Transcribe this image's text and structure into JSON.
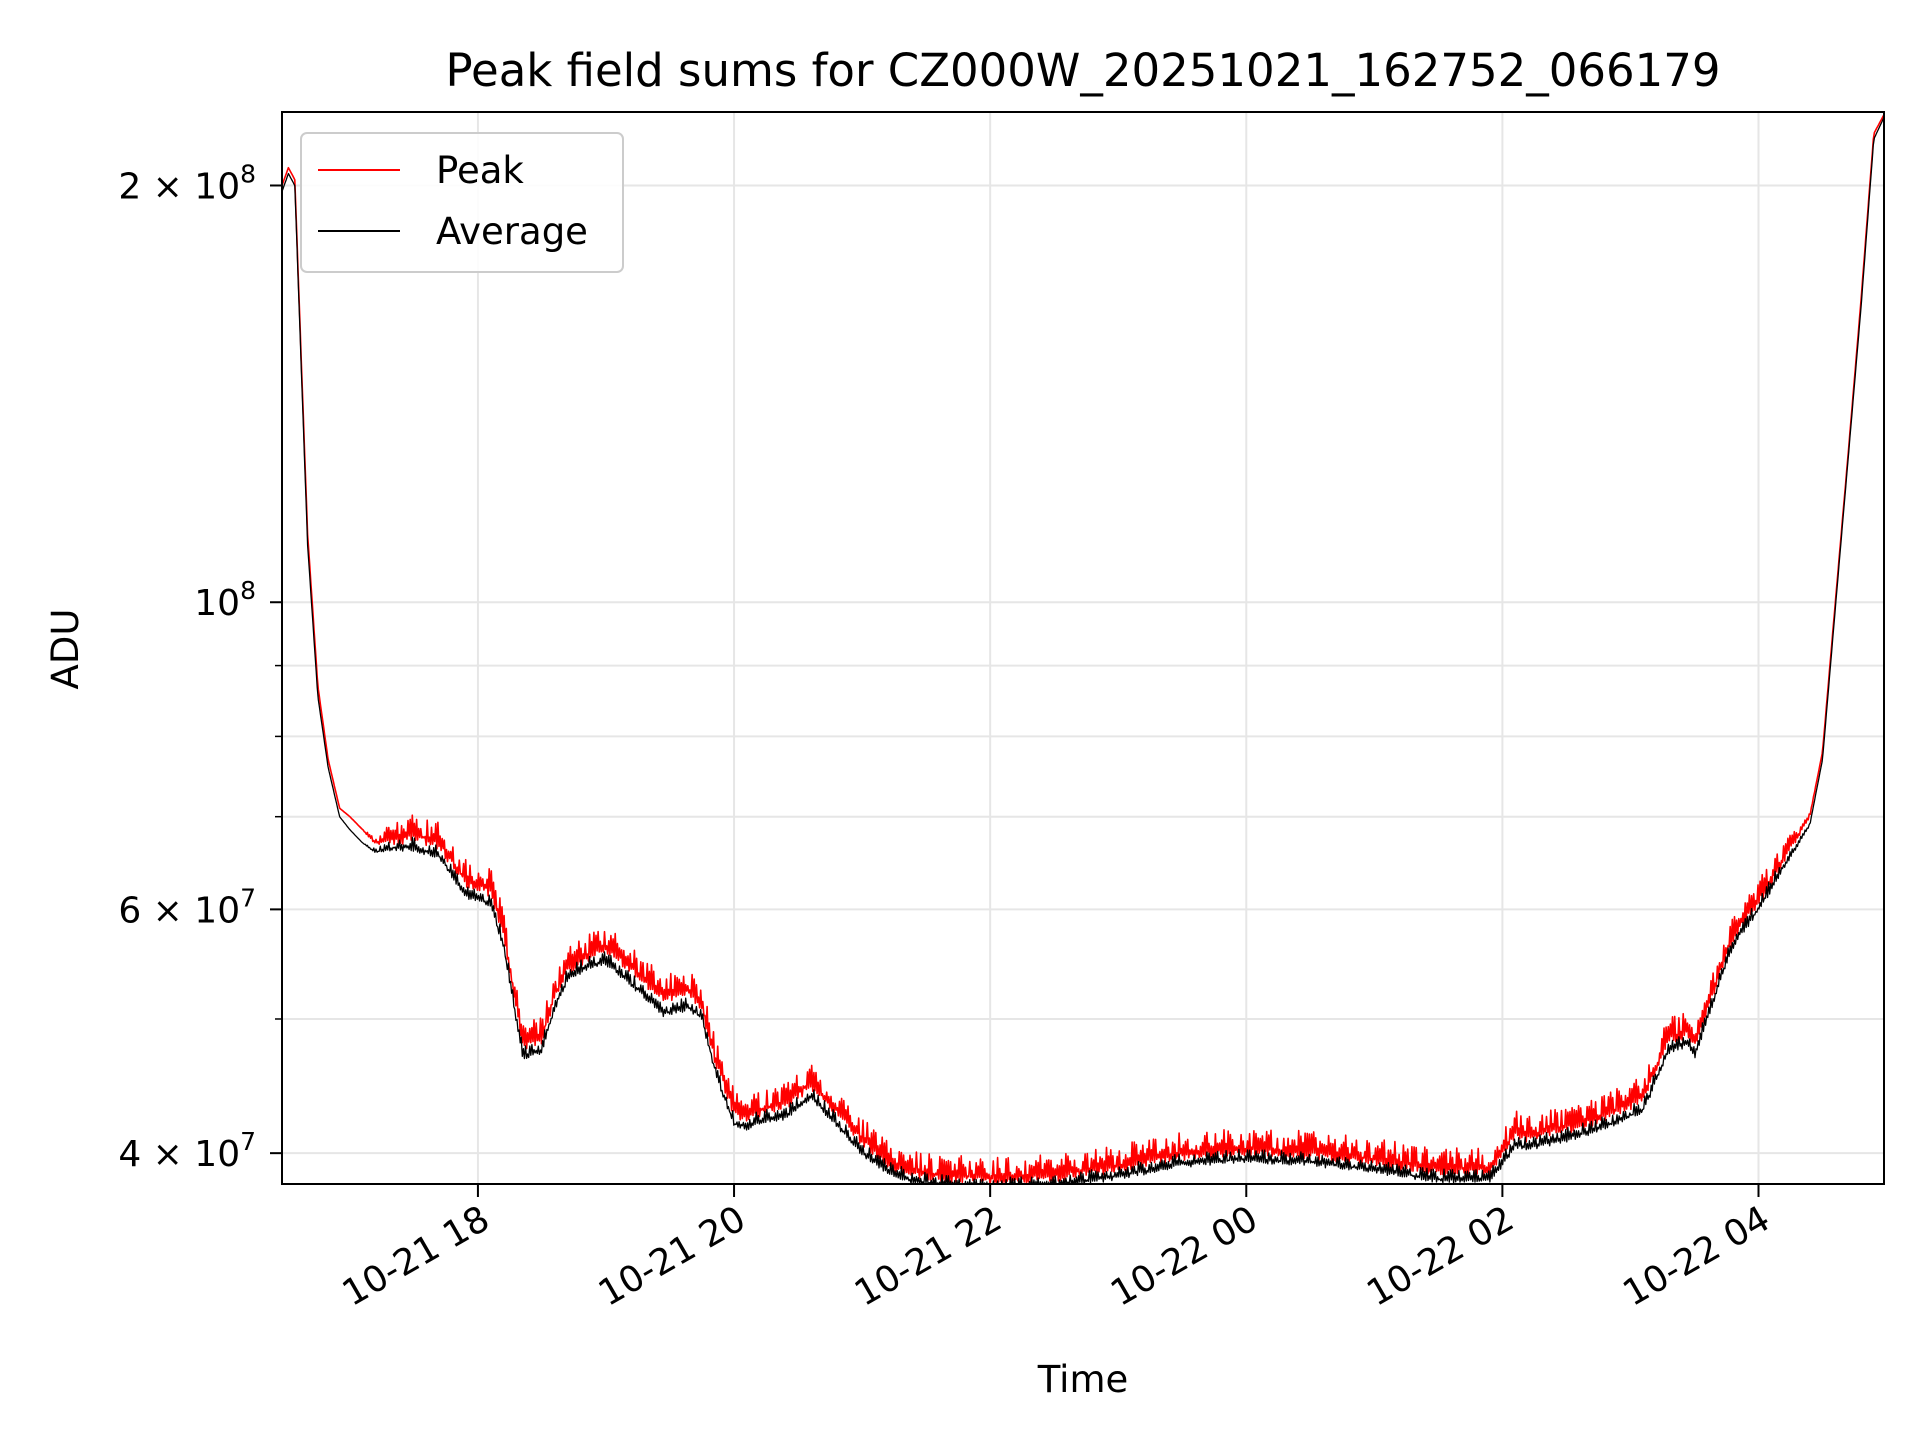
{
  "chart_data": {
    "type": "line",
    "title": "Peak field sums for CZ000W_20251021_162752_066179",
    "xlabel": "Time",
    "ylabel": "ADU",
    "yscale": "log",
    "grid": true,
    "legend_position": "upper-left",
    "xlim_hours": [
      16.47,
      28.98
    ],
    "ylim": [
      38000000,
      226000000
    ],
    "x_ticks": [
      {
        "hour": 18,
        "label": "10-21 18"
      },
      {
        "hour": 20,
        "label": "10-21 20"
      },
      {
        "hour": 22,
        "label": "10-21 22"
      },
      {
        "hour": 24,
        "label": "10-22 00"
      },
      {
        "hour": 26,
        "label": "10-22 02"
      },
      {
        "hour": 28,
        "label": "10-22 04"
      }
    ],
    "y_ticks": [
      {
        "value": 40000000,
        "mantissa": "4 × 10",
        "exponent": "7"
      },
      {
        "value": 60000000,
        "mantissa": "6 × 10",
        "exponent": "7"
      },
      {
        "value": 100000000,
        "mantissa": "10",
        "exponent": "8"
      },
      {
        "value": 200000000,
        "mantissa": "2 × 10",
        "exponent": "8"
      }
    ],
    "y_minor_ticks": [
      50000000,
      70000000,
      80000000,
      90000000
    ],
    "series": [
      {
        "name": "Peak",
        "color": "#ff0000",
        "noise_amplitude": 0.035,
        "x_hours": [
          16.47,
          16.52,
          16.57,
          16.62,
          16.67,
          16.75,
          16.83,
          16.92,
          17.0,
          17.1,
          17.2,
          17.35,
          17.5,
          17.7,
          17.9,
          18.0,
          18.1,
          18.2,
          18.35,
          18.5,
          18.6,
          18.7,
          18.85,
          19.0,
          19.2,
          19.45,
          19.65,
          19.75,
          19.85,
          19.92,
          20.0,
          20.1,
          20.2,
          20.4,
          20.6,
          20.8,
          21.0,
          21.2,
          21.4,
          21.6,
          21.8,
          22.0,
          22.5,
          23.0,
          23.5,
          24.0,
          24.5,
          25.0,
          25.5,
          25.9,
          26.05,
          26.1,
          26.2,
          26.5,
          26.8,
          27.1,
          27.3,
          27.45,
          27.5,
          27.6,
          27.75,
          27.85,
          28.0,
          28.2,
          28.4,
          28.5,
          28.6,
          28.7,
          28.8,
          28.9,
          28.98
        ],
        "values": [
          200000000,
          206000000,
          202000000,
          150000000,
          112000000,
          87000000,
          77000000,
          71000000,
          70000000,
          68500000,
          67000000,
          67500000,
          68000000,
          67000000,
          63000000,
          62500000,
          62000000,
          58000000,
          48000000,
          48500000,
          52000000,
          54500000,
          55500000,
          56500000,
          54500000,
          52000000,
          52500000,
          51000000,
          47000000,
          45000000,
          43000000,
          42500000,
          43000000,
          43500000,
          45000000,
          43000000,
          41000000,
          39500000,
          38800000,
          38600000,
          38500000,
          38400000,
          38600000,
          39200000,
          40000000,
          40300000,
          40100000,
          39600000,
          39000000,
          39000000,
          40700000,
          41500000,
          41200000,
          41800000,
          42600000,
          44000000,
          48500000,
          49000000,
          48000000,
          51000000,
          56000000,
          58500000,
          61000000,
          65500000,
          70000000,
          78000000,
          100000000,
          128000000,
          165000000,
          218000000,
          225000000
        ]
      },
      {
        "name": "Average",
        "color": "#000000",
        "noise_amplitude": 0.018,
        "x_hours": [
          16.47,
          16.52,
          16.57,
          16.62,
          16.67,
          16.75,
          16.83,
          16.92,
          17.0,
          17.1,
          17.2,
          17.35,
          17.5,
          17.7,
          17.9,
          18.0,
          18.1,
          18.2,
          18.35,
          18.5,
          18.6,
          18.7,
          18.85,
          19.0,
          19.2,
          19.45,
          19.65,
          19.75,
          19.85,
          19.92,
          20.0,
          20.1,
          20.2,
          20.4,
          20.6,
          20.8,
          21.0,
          21.2,
          21.4,
          21.6,
          21.8,
          22.0,
          22.5,
          23.0,
          23.5,
          24.0,
          24.5,
          25.0,
          25.5,
          25.9,
          26.05,
          26.1,
          26.2,
          26.5,
          26.8,
          27.1,
          27.3,
          27.45,
          27.5,
          27.6,
          27.75,
          27.85,
          28.0,
          28.2,
          28.4,
          28.5,
          28.6,
          28.7,
          28.8,
          28.9,
          28.98
        ],
        "values": [
          198000000,
          204000000,
          200000000,
          148000000,
          110000000,
          85500000,
          76000000,
          70000000,
          68500000,
          67000000,
          66000000,
          66500000,
          66500000,
          65500000,
          61500000,
          61000000,
          60500000,
          56500000,
          47000000,
          47500000,
          51000000,
          53500000,
          54500000,
          55000000,
          53000000,
          50500000,
          51000000,
          50000000,
          46000000,
          44000000,
          42000000,
          41800000,
          42200000,
          42500000,
          44000000,
          42000000,
          40000000,
          38800000,
          38200000,
          38000000,
          37800000,
          37700000,
          37900000,
          38500000,
          39300000,
          39600000,
          39400000,
          38900000,
          38300000,
          38300000,
          39800000,
          40600000,
          40400000,
          41000000,
          41800000,
          43000000,
          47500000,
          48000000,
          47000000,
          50000000,
          55000000,
          57500000,
          60000000,
          64500000,
          69000000,
          77000000,
          99000000,
          127000000,
          163000000,
          216000000,
          224000000
        ]
      }
    ]
  }
}
